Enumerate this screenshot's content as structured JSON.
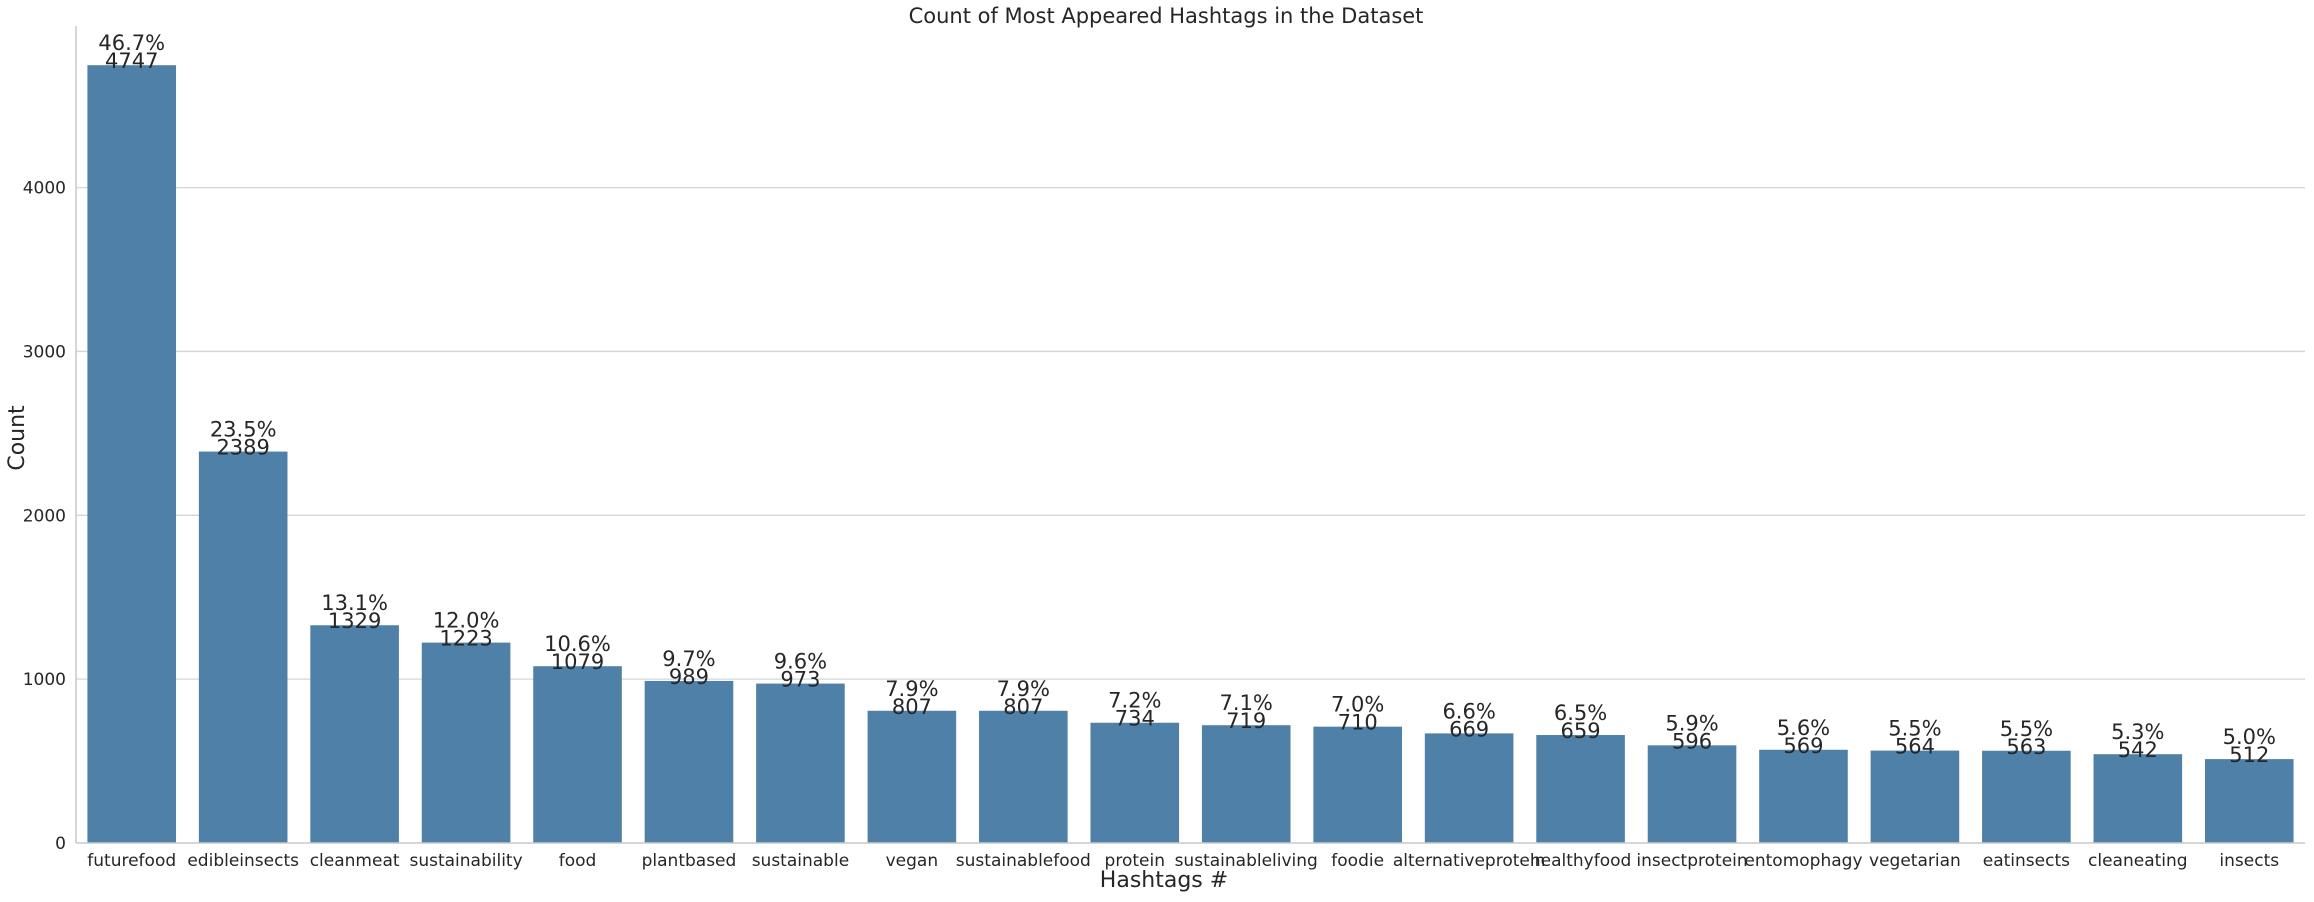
{
  "chart_data": {
    "type": "bar",
    "title": "Count of Most Appeared Hashtags in the Dataset",
    "xlabel": "Hashtags #",
    "ylabel": "Count",
    "ylim": [
      0,
      5000
    ],
    "yticks": [
      "0",
      "1000",
      "2000",
      "3000",
      "4000"
    ],
    "grid": "horizontal",
    "bar_color": "#4f81a8",
    "categories": [
      "futurefood",
      "edibleinsects",
      "cleanmeat",
      "sustainability",
      "food",
      "plantbased",
      "sustainable",
      "vegan",
      "sustainablefood",
      "protein",
      "sustainableliving",
      "foodie",
      "alternativeprotein",
      "healthyfood",
      "insectprotein",
      "entomophagy",
      "vegetarian",
      "eatinsects",
      "cleaneating",
      "insects"
    ],
    "values": [
      4747,
      2389,
      1329,
      1223,
      1079,
      989,
      973,
      807,
      807,
      734,
      719,
      710,
      669,
      659,
      596,
      569,
      564,
      563,
      542,
      512
    ],
    "percent_labels": [
      "46.7%",
      "23.5%",
      "13.1%",
      "12.0%",
      "10.6%",
      "9.7%",
      "9.6%",
      "7.9%",
      "7.9%",
      "7.2%",
      "7.1%",
      "7.0%",
      "6.6%",
      "6.5%",
      "5.9%",
      "5.6%",
      "5.5%",
      "5.5%",
      "5.3%",
      "5.0%"
    ],
    "value_labels": [
      "4747",
      "2389",
      "1329",
      "1223",
      "1079",
      "989",
      "973",
      "807",
      "807",
      "734",
      "719",
      "710",
      "669",
      "659",
      "596",
      "569",
      "564",
      "563",
      "542",
      "512"
    ]
  }
}
